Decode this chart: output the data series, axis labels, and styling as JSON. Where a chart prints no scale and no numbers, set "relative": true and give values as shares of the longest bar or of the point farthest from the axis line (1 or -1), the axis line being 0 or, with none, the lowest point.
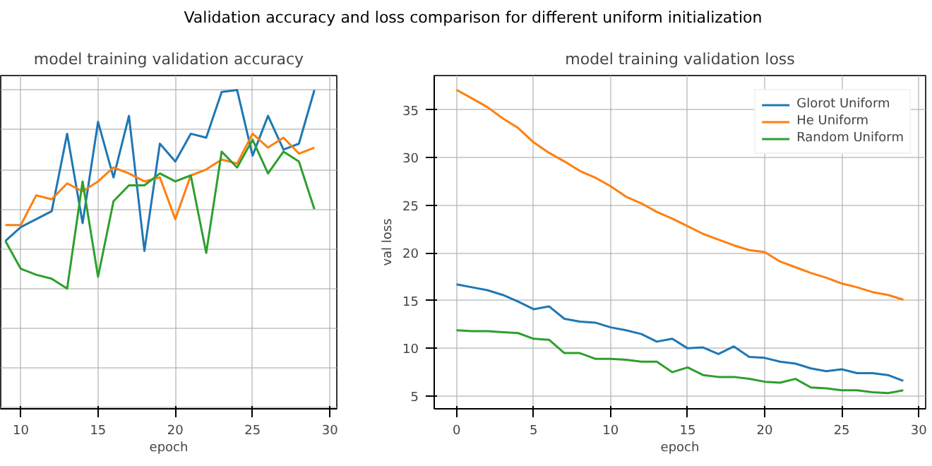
{
  "chart_data": [
    {
      "type": "line",
      "title": "model training validation accuracy",
      "xlabel": "epoch",
      "relative": true,
      "grid": true,
      "legend": false,
      "annotations": [
        "Validation accuracy and loss comparison for different uniform initialization"
      ],
      "x": [
        9,
        10,
        11,
        12,
        13,
        14,
        15,
        16,
        17,
        18,
        19,
        20,
        21,
        22,
        23,
        24,
        25,
        26,
        27,
        28,
        29
      ],
      "xlim": [
        8.7,
        30.45
      ],
      "xticks": [
        10,
        15,
        20,
        25,
        30
      ],
      "series": [
        {
          "color": "#1f77b4",
          "values": [
            0.24,
            0.31,
            0.35,
            0.39,
            0.78,
            0.33,
            0.84,
            0.56,
            0.87,
            0.19,
            0.73,
            0.64,
            0.78,
            0.76,
            0.99,
            1.0,
            0.67,
            0.87,
            0.7,
            0.73,
            1.0
          ]
        },
        {
          "color": "#ff7f0e",
          "values": [
            0.32,
            0.32,
            0.47,
            0.45,
            0.53,
            0.49,
            0.54,
            0.61,
            0.58,
            0.54,
            0.56,
            0.35,
            0.57,
            0.6,
            0.65,
            0.63,
            0.78,
            0.71,
            0.76,
            0.68,
            0.71
          ]
        },
        {
          "color": "#2ca02c",
          "values": [
            0.24,
            0.1,
            0.07,
            0.05,
            0.0,
            0.54,
            0.06,
            0.44,
            0.52,
            0.52,
            0.58,
            0.54,
            0.57,
            0.18,
            0.69,
            0.61,
            0.75,
            0.58,
            0.69,
            0.64,
            0.4
          ]
        }
      ]
    },
    {
      "type": "line",
      "title": "model training validation loss",
      "xlabel": "epoch",
      "ylabel": "val loss",
      "grid": true,
      "legend": "top right",
      "x": [
        0,
        1,
        2,
        3,
        4,
        5,
        6,
        7,
        8,
        9,
        10,
        11,
        12,
        13,
        14,
        15,
        16,
        17,
        18,
        19,
        20,
        21,
        22,
        23,
        24,
        25,
        26,
        27,
        28,
        29
      ],
      "xlim": [
        -1.45,
        30.45
      ],
      "xticks": [
        0,
        5,
        10,
        15,
        20,
        25,
        30
      ],
      "ylim": [
        3.66,
        38.6
      ],
      "yticks": [
        5,
        10,
        15,
        20,
        25,
        30,
        35
      ],
      "series": [
        {
          "name": "Glorot Uniform",
          "color": "#1f77b4",
          "values": [
            16.7,
            16.4,
            16.1,
            15.6,
            14.9,
            14.1,
            14.4,
            13.1,
            12.8,
            12.7,
            12.2,
            11.9,
            11.5,
            10.7,
            11.0,
            10.0,
            10.1,
            9.4,
            10.2,
            9.1,
            9.0,
            8.6,
            8.4,
            7.9,
            7.6,
            7.8,
            7.4,
            7.4,
            7.2,
            6.6
          ]
        },
        {
          "name": "He Uniform",
          "color": "#ff7f0e",
          "values": [
            37.1,
            36.2,
            35.3,
            34.1,
            33.1,
            31.6,
            30.5,
            29.6,
            28.6,
            27.9,
            27.0,
            25.9,
            25.2,
            24.3,
            23.6,
            22.8,
            22.0,
            21.4,
            20.8,
            20.3,
            20.1,
            19.1,
            18.5,
            17.9,
            17.4,
            16.8,
            16.4,
            15.9,
            15.6,
            15.1
          ]
        },
        {
          "name": "Random Uniform",
          "color": "#2ca02c",
          "values": [
            11.9,
            11.8,
            11.8,
            11.7,
            11.6,
            11.0,
            10.9,
            9.5,
            9.5,
            8.9,
            8.9,
            8.8,
            8.6,
            8.6,
            7.5,
            8.0,
            7.2,
            7.0,
            7.0,
            6.8,
            6.5,
            6.4,
            6.8,
            5.9,
            5.8,
            5.6,
            5.6,
            5.4,
            5.3,
            5.6
          ]
        }
      ]
    }
  ]
}
